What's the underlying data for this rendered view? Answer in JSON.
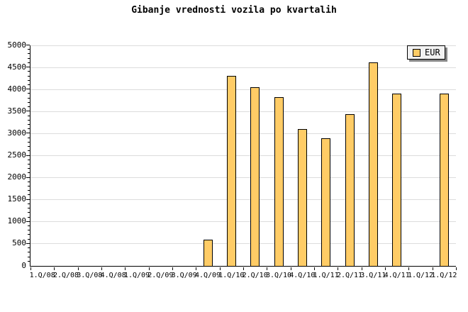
{
  "window": {
    "background": "#ffffff"
  },
  "chart_data": {
    "type": "bar",
    "title": "Gibanje vrednosti vozila po kvartalih",
    "xlabel": "",
    "ylabel": "",
    "categories": [
      "1.Q/08",
      "2.Q/08",
      "3.Q/08",
      "4.Q/08",
      "1.Q/09",
      "2.Q/09",
      "3.Q/09",
      "4.Q/09",
      "1.Q/10",
      "2.Q/10",
      "3.Q/10",
      "4.Q/10",
      "1.Q/11",
      "2.Q/11",
      "3.Q/11",
      "4.Q/11",
      "1.Q/12",
      "1.Q/12"
    ],
    "series": [
      {
        "name": "EUR",
        "values": [
          null,
          null,
          null,
          null,
          null,
          null,
          null,
          600,
          4310,
          4050,
          3820,
          3100,
          2900,
          3440,
          4620,
          3900,
          null,
          3900
        ]
      }
    ],
    "ylim": [
      0,
      5000
    ],
    "yticks": [
      0,
      500,
      1000,
      1500,
      2000,
      2500,
      3000,
      3500,
      4000,
      4500,
      5000
    ],
    "ytick_step": 500,
    "y_minor_step": 100,
    "grid": true,
    "legend": {
      "label": "EUR",
      "position": "top-right"
    },
    "colors": {
      "bar_fill": "#ffcc66",
      "bar_border": "#000000",
      "grid": "#dcdcdc",
      "axis": "#000000",
      "background": "#ffffff",
      "legend_bg": "#f2f2f2",
      "legend_shadow": "#888888"
    }
  }
}
